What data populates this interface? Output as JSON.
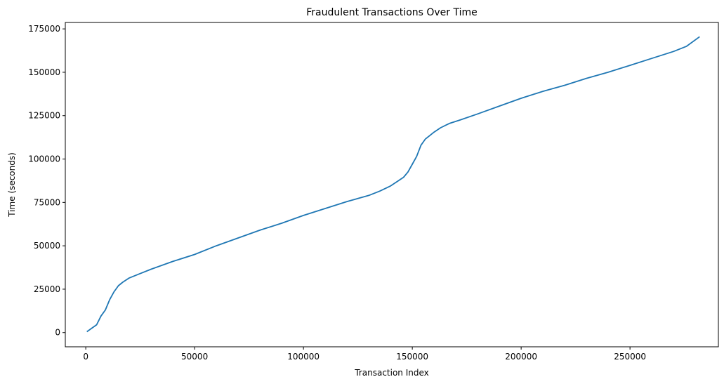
{
  "chart_data": {
    "type": "line",
    "title": "Fraudulent Transactions Over Time",
    "xlabel": "Transaction Index",
    "ylabel": "Time (seconds)",
    "xlim": [
      -9400,
      290600
    ],
    "ylim": [
      -8200,
      178700
    ],
    "grid": false,
    "legend": "none",
    "x_ticks": [
      0,
      50000,
      100000,
      150000,
      200000,
      250000
    ],
    "x_tick_labels": [
      "0",
      "50000",
      "100000",
      "150000",
      "200000",
      "250000"
    ],
    "y_ticks": [
      0,
      25000,
      50000,
      75000,
      100000,
      125000,
      150000,
      175000
    ],
    "y_tick_labels": [
      "0",
      "25000",
      "50000",
      "75000",
      "100000",
      "125000",
      "150000",
      "175000"
    ],
    "series": [
      {
        "color": "#1f77b4",
        "x": [
          500,
          5000,
          7000,
          9000,
          11000,
          13000,
          15000,
          17000,
          20000,
          22000,
          25000,
          30000,
          40000,
          50000,
          60000,
          70000,
          80000,
          90000,
          100000,
          110000,
          120000,
          130000,
          135000,
          140000,
          143000,
          146000,
          148000,
          150000,
          152000,
          154000,
          156000,
          158000,
          160000,
          163000,
          167000,
          172000,
          180000,
          190000,
          200000,
          210000,
          220000,
          230000,
          240000,
          250000,
          260000,
          270000,
          276000,
          282000
        ],
        "y": [
          500,
          4500,
          9500,
          13000,
          19000,
          23500,
          27000,
          29000,
          31500,
          32500,
          34000,
          36500,
          41000,
          45000,
          50000,
          54500,
          59000,
          63000,
          67500,
          71500,
          75500,
          79000,
          81500,
          84500,
          87000,
          89500,
          92500,
          97000,
          101500,
          108000,
          111500,
          113500,
          115500,
          118000,
          120500,
          122500,
          126000,
          130500,
          135000,
          139000,
          142500,
          146500,
          150000,
          154000,
          158000,
          162000,
          165000,
          170500
        ]
      }
    ]
  }
}
